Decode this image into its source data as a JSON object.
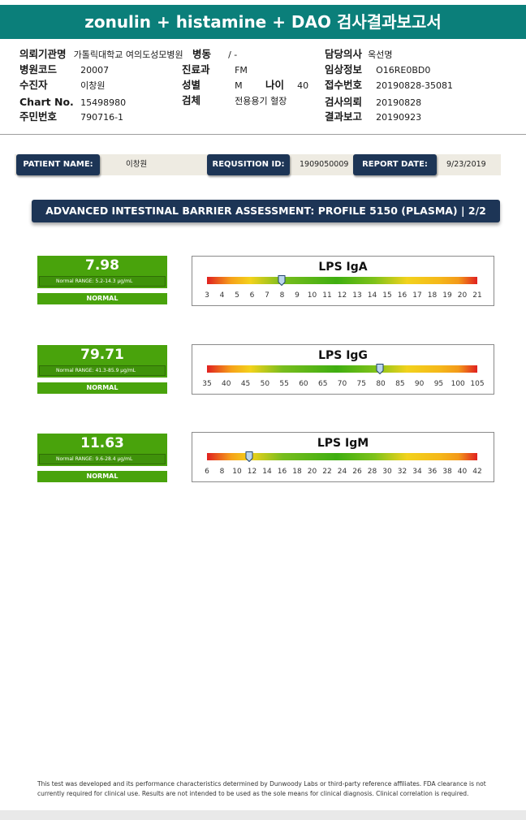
{
  "header": {
    "title": "zonulin + histamine + DAO 검사결과보고서"
  },
  "info": {
    "institution_label": "의뢰기관명",
    "institution_value": "가톨릭대학교 여의도성모병원",
    "ward_label": "병동",
    "ward_value": "/ -",
    "doctor_label": "담당의사",
    "doctor_value": "옥선명",
    "hospital_code_label": "병원코드",
    "hospital_code_value": "20007",
    "dept_label": "진료과",
    "dept_value": "FM",
    "clinical_label": "임상정보",
    "clinical_value": "O16RE0BD0",
    "patient_label": "수진자",
    "patient_value": "이창원",
    "sex_label": "성별",
    "sex_value": "M",
    "age_label": "나이",
    "age_value": "40",
    "receipt_label": "접수번호",
    "receipt_value": "20190828-35081",
    "chart_label": "Chart No.",
    "chart_value": "15498980",
    "specimen_label": "검체",
    "specimen_value": "전용용기 혈장",
    "request_label": "검사의뢰",
    "request_value": "20190828",
    "id_label": "주민번호",
    "id_value": "790716-1",
    "report_label": "결과보고",
    "report_value": "20190923"
  },
  "patient_strip": {
    "name_label": "PATIENT NAME:",
    "name_value": "이창원",
    "req_label": "REQUSITION ID:",
    "req_value": "1909050009",
    "date_label": "REPORT DATE:",
    "date_value": "9/23/2019"
  },
  "banner": {
    "text": "ADVANCED INTESTINAL BARRIER ASSESSMENT: PROFILE 5150 (PLASMA) | 2/2"
  },
  "results": [
    {
      "name": "LPS IgA",
      "value_text": "7.98",
      "value": 7.98,
      "range": "Normal RANGE: 5.2-14.3 µg/mL",
      "status": "NORMAL",
      "min": 3,
      "max": 21,
      "ticks": [
        "3",
        "4",
        "5",
        "6",
        "7",
        "8",
        "9",
        "10",
        "11",
        "12",
        "13",
        "14",
        "15",
        "16",
        "17",
        "18",
        "19",
        "20",
        "21"
      ]
    },
    {
      "name": "LPS IgG",
      "value_text": "79.71",
      "value": 79.71,
      "range": "Normal RANGE: 41.3-85.9 µg/mL",
      "status": "NORMAL",
      "min": 35,
      "max": 105,
      "ticks": [
        "35",
        "40",
        "45",
        "50",
        "55",
        "60",
        "65",
        "70",
        "75",
        "80",
        "85",
        "90",
        "95",
        "100",
        "105"
      ]
    },
    {
      "name": "LPS IgM",
      "value_text": "11.63",
      "value": 11.63,
      "range": "Normal RANGE: 9.6-28.4 µg/mL",
      "status": "NORMAL",
      "min": 6,
      "max": 42,
      "ticks": [
        "6",
        "8",
        "10",
        "12",
        "14",
        "16",
        "18",
        "20",
        "22",
        "24",
        "26",
        "28",
        "30",
        "32",
        "34",
        "36",
        "38",
        "40",
        "42"
      ]
    }
  ],
  "footer": {
    "line1": "This test was developed and its performance characteristics determined by Dunwoody Labs or third-party reference affiliates. FDA clearance is not",
    "line2": "currently required for clinical use. Results are not intended to be used as the sole means for clinical diagnosis. Clinical correlation is required."
  },
  "colors": {
    "title_bg": "#0b7f7a",
    "navy": "#1d3556",
    "normal_green": "#49a30c"
  }
}
